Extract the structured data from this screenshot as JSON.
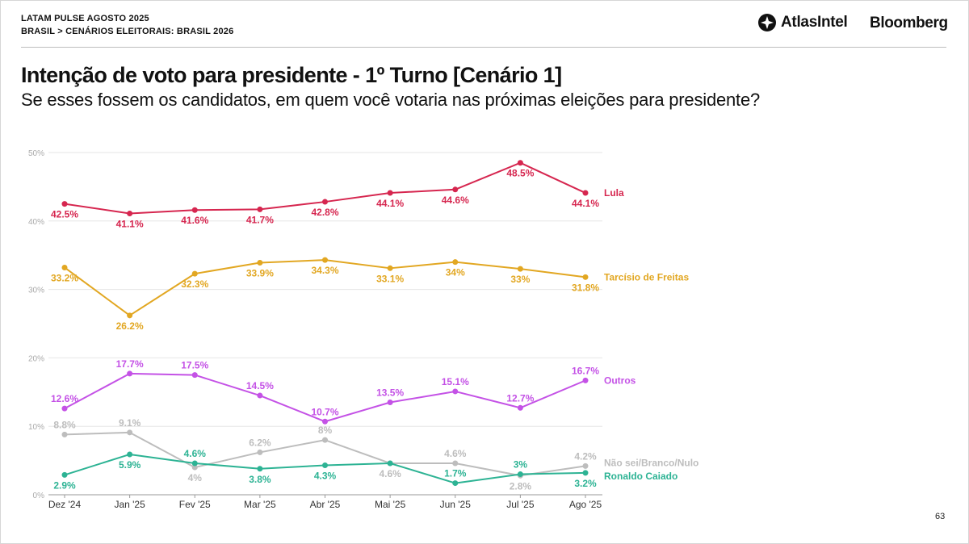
{
  "header": {
    "line1": "LATAM PULSE AGOSTO 2025",
    "line2": "BRASIL > CENÁRIOS ELEITORAIS: BRASIL 2026",
    "brand_atlas": "AtlasIntel",
    "brand_bloomberg": "Bloomberg",
    "atlas_logo_icon": "atlas-compass-icon"
  },
  "page_number": "63",
  "chart_data": {
    "type": "line",
    "title": "Intenção de voto para presidente - 1º Turno [Cenário 1]",
    "subtitle": "Se esses fossem os candidatos, em quem você votaria nas próximas eleições para presidente?",
    "xlabel": "",
    "ylabel": "",
    "categories": [
      "Dez '24",
      "Jan '25",
      "Fev '25",
      "Mar '25",
      "Abr '25",
      "Mai '25",
      "Jun '25",
      "Jul '25",
      "Ago '25"
    ],
    "ylim": [
      0,
      50
    ],
    "y_ticks": [
      "0%",
      "10%",
      "20%",
      "30%",
      "40%",
      "50%"
    ],
    "grid": true,
    "legend": "direct labels at right end of lines",
    "series": [
      {
        "name": "Lula",
        "color": "#d6264f",
        "values": [
          42.5,
          41.1,
          41.6,
          41.7,
          42.8,
          44.1,
          44.6,
          48.5,
          44.1
        ],
        "labels": [
          "42.5%",
          "41.1%",
          "41.6%",
          "41.7%",
          "42.8%",
          "44.1%",
          "44.6%",
          "48.5%",
          "44.1%"
        ],
        "label_pos": [
          "below",
          "below",
          "below",
          "below",
          "below",
          "below",
          "below",
          "below",
          "below"
        ]
      },
      {
        "name": "Tarcísio de Freitas",
        "color": "#e2a722",
        "values": [
          33.2,
          26.2,
          32.3,
          33.9,
          34.3,
          33.1,
          34,
          33,
          31.8
        ],
        "labels": [
          "33.2%",
          "26.2%",
          "32.3%",
          "33.9%",
          "34.3%",
          "33.1%",
          "34%",
          "33%",
          "31.8%"
        ],
        "label_pos": [
          "below",
          "below",
          "below",
          "below",
          "below",
          "below",
          "below",
          "below",
          "below"
        ]
      },
      {
        "name": "Outros",
        "color": "#c452e6",
        "values": [
          12.6,
          17.7,
          17.5,
          14.5,
          10.7,
          13.5,
          15.1,
          12.7,
          16.7
        ],
        "labels": [
          "12.6%",
          "17.7%",
          "17.5%",
          "14.5%",
          "10.7%",
          "13.5%",
          "15.1%",
          "12.7%",
          "16.7%"
        ],
        "label_pos": [
          "above",
          "above",
          "above",
          "above",
          "above",
          "above",
          "above",
          "above",
          "above"
        ]
      },
      {
        "name": "Não sei/Branco/Nulo",
        "color": "#bdbdbd",
        "values": [
          8.8,
          9.1,
          4,
          6.2,
          8,
          4.6,
          4.6,
          2.8,
          4.2
        ],
        "labels": [
          "8.8%",
          "9.1%",
          "4%",
          "6.2%",
          "8%",
          "4.6%",
          "4.6%",
          "2.8%",
          "4.2%"
        ],
        "label_pos": [
          "above",
          "above",
          "below",
          "above",
          "above",
          "below",
          "above",
          "below",
          "above"
        ]
      },
      {
        "name": "Ronaldo Caiado",
        "color": "#2db394",
        "values": [
          2.9,
          5.9,
          4.6,
          3.8,
          4.3,
          4.6,
          1.7,
          3,
          3.2
        ],
        "labels": [
          "2.9%",
          "5.9%",
          "4.6%",
          "3.8%",
          "4.3%",
          "",
          "1.7%",
          "3%",
          "3.2%"
        ],
        "label_pos": [
          "below",
          "below",
          "above",
          "below",
          "below",
          "none",
          "above",
          "above",
          "below"
        ]
      }
    ]
  }
}
